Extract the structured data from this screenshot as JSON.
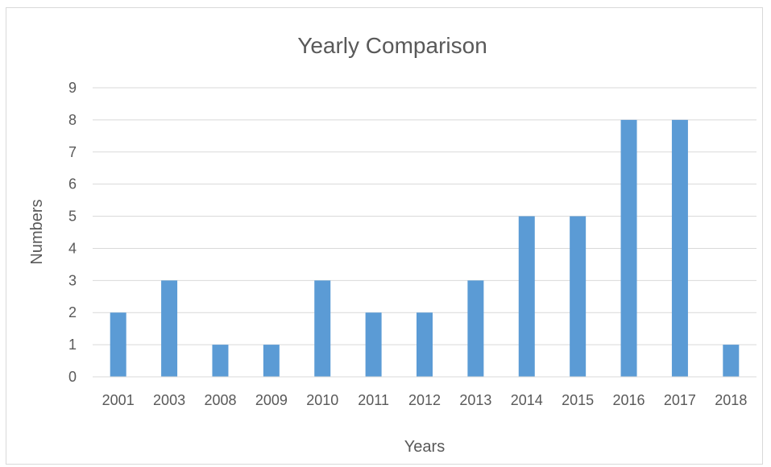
{
  "chart_data": {
    "type": "bar",
    "title": "Yearly Comparison",
    "xlabel": "Years",
    "ylabel": "Numbers",
    "categories": [
      "2001",
      "2003",
      "2008",
      "2009",
      "2010",
      "2011",
      "2012",
      "2013",
      "2014",
      "2015",
      "2016",
      "2017",
      "2018"
    ],
    "values": [
      2,
      3,
      1,
      1,
      3,
      2,
      2,
      3,
      5,
      5,
      8,
      8,
      1
    ],
    "ylim": [
      0,
      9
    ],
    "yticks": [
      "0",
      "1",
      "2",
      "3",
      "4",
      "5",
      "6",
      "7",
      "8",
      "9"
    ],
    "grid": true,
    "bar_color": "#5b9bd5",
    "legend": "none"
  }
}
